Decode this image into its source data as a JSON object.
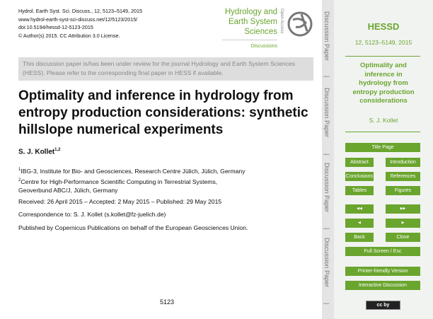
{
  "header": {
    "lines": [
      "Hydrol. Earth Syst. Sci. Discuss., 12, 5123–5149, 2015",
      "www.hydrol-earth-syst-sci-discuss.net/12/5123/2015/",
      "doi:10.5194/hessd-12-5123-2015",
      "© Author(s) 2015. CC Attribution 3.0 License."
    ]
  },
  "logo": {
    "lines": [
      "Hydrology and",
      "Earth System",
      "Sciences"
    ],
    "sub": "Discussions",
    "open_access": "Open Access"
  },
  "notice": "This discussion paper is/has been under review for the journal Hydrology and Earth System Sciences (HESS). Please refer to the corresponding final paper in HESS if available.",
  "title": "Optimality and inference in hydrology from entropy production considerations: synthetic hillslope numerical experiments",
  "author": {
    "name": "S. J. Kollet",
    "sup": "1,2"
  },
  "affiliations": [
    {
      "sup": "1",
      "text": "IBG-3, Institute for Bio- and Geosciences, Research Centre Jülich, Jülich, Germany"
    },
    {
      "sup": "2",
      "text": "Centre for High-Performance Scientific Computing in Terrestrial Systems, Geoverbund ABC/J, Jülich, Germany"
    }
  ],
  "received": "Received: 26 April 2015 – Accepted: 2 May 2015 – Published: 29 May 2015",
  "correspondence": "Correspondence to: S. J. Kollet (s.kollet@fz-juelich.de)",
  "published_by": "Published by Copernicus Publications on behalf of the European Geosciences Union.",
  "page_number": "5123",
  "strip": {
    "label": "Discussion Paper",
    "sep": "|"
  },
  "sidebar": {
    "journal": "HESSD",
    "volume": "12, 5123–5149, 2015",
    "short_title": "Optimality and inference in hydrology from entropy production considerations",
    "author": "S. J. Kollet",
    "buttons": {
      "title_page": "Title Page",
      "abstract": "Abstract",
      "introduction": "Introduction",
      "conclusions": "Conclusions",
      "references": "References",
      "tables": "Tables",
      "figures": "Figures",
      "first": "◀◀",
      "last": "▶▶",
      "prev": "◀",
      "next": "▶",
      "back": "Back",
      "close": "Close",
      "fullscreen": "Full Screen / Esc",
      "printer": "Printer-friendly Version",
      "discussion": "Interactive Discussion"
    },
    "license_badge": "cc by"
  },
  "colors": {
    "accent": "#6aa52e",
    "notice_bg": "#dddddd",
    "sidebar_bg": "#f1f3f1"
  }
}
